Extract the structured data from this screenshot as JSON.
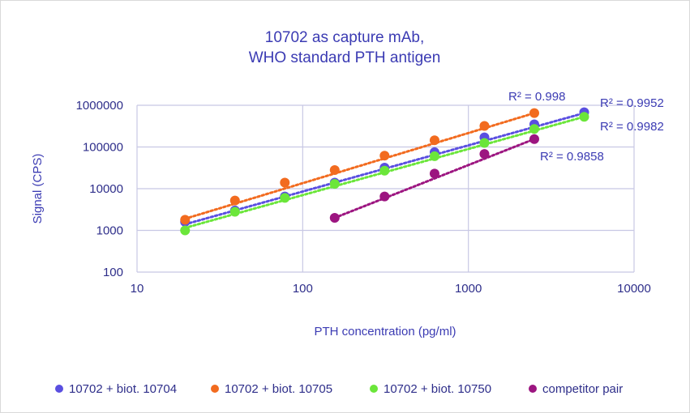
{
  "chart_data": {
    "type": "scatter",
    "title": [
      "10702 as capture mAb,",
      "WHO standard PTH antigen"
    ],
    "xlabel": "PTH concentration (pg/ml)",
    "ylabel": "Signal (CPS)",
    "x_scale": "log",
    "y_scale": "log",
    "xlim": [
      10,
      10000
    ],
    "ylim": [
      100,
      1000000
    ],
    "x_ticks": [
      "10",
      "100",
      "1000",
      "10000"
    ],
    "y_ticks": [
      "100",
      "1000",
      "10000",
      "100000",
      "1000000"
    ],
    "grid": true,
    "legend_position": "bottom",
    "series": [
      {
        "name": "10702 + biot. 10704",
        "color": "#5a4fe0",
        "x": [
          19.5,
          39,
          78,
          156,
          312,
          625,
          1250,
          2500,
          5000
        ],
        "y": [
          1600,
          3000,
          6500,
          14000,
          32000,
          75000,
          170000,
          350000,
          680000
        ],
        "trend": [
          1400,
          650000
        ],
        "r2": "R² = 0.9952"
      },
      {
        "name": "10702 + biot. 10705",
        "color": "#f26b1f",
        "x": [
          19.5,
          39,
          78,
          156,
          312,
          625,
          1250,
          2500
        ],
        "y": [
          1800,
          5200,
          14000,
          28000,
          62000,
          145000,
          320000,
          650000
        ],
        "trend": [
          1900,
          650000
        ],
        "r2": "R² = 0.998"
      },
      {
        "name": "10702 + biot. 10750",
        "color": "#6be63a",
        "x": [
          19.5,
          39,
          78,
          156,
          312,
          625,
          1250,
          2500,
          5000
        ],
        "y": [
          1000,
          2800,
          6000,
          13000,
          27000,
          60000,
          125000,
          270000,
          530000
        ],
        "trend": [
          1150,
          530000
        ],
        "r2": "R² = 0.9982"
      },
      {
        "name": "competitor pair",
        "color": "#9c1580",
        "x": [
          156,
          312,
          625,
          1250,
          2500
        ],
        "y": [
          2000,
          6500,
          23000,
          68000,
          155000
        ],
        "trend": [
          2000,
          155000
        ],
        "r2": "R² = 0.9858"
      }
    ]
  }
}
